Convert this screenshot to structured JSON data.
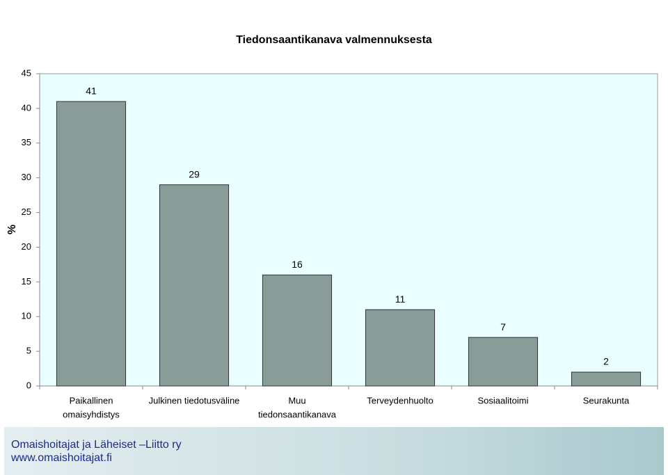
{
  "chart_data": {
    "type": "bar",
    "title": "Tiedonsaantikanava valmennuksesta",
    "y_label": "%",
    "categories": [
      [
        "Paikallinen",
        "omaisyhdistys"
      ],
      [
        "Julkinen tiedotusväline"
      ],
      [
        "Muu",
        "tiedonsaantikanava"
      ],
      [
        "Terveydenhuolto"
      ],
      [
        "Sosiaalitoimi"
      ],
      [
        "Seurakunta"
      ]
    ],
    "values": [
      41,
      29,
      16,
      11,
      7,
      2
    ],
    "color": "#8a9c98",
    "ylim": [
      0,
      45
    ],
    "yticks": [
      0,
      5,
      10,
      15,
      20,
      25,
      30,
      35,
      40,
      45
    ],
    "grid": false
  },
  "footer": {
    "organization": "Omaishoitajat ja Läheiset –Liitto ry",
    "url": "www.omaishoitajat.fi"
  }
}
